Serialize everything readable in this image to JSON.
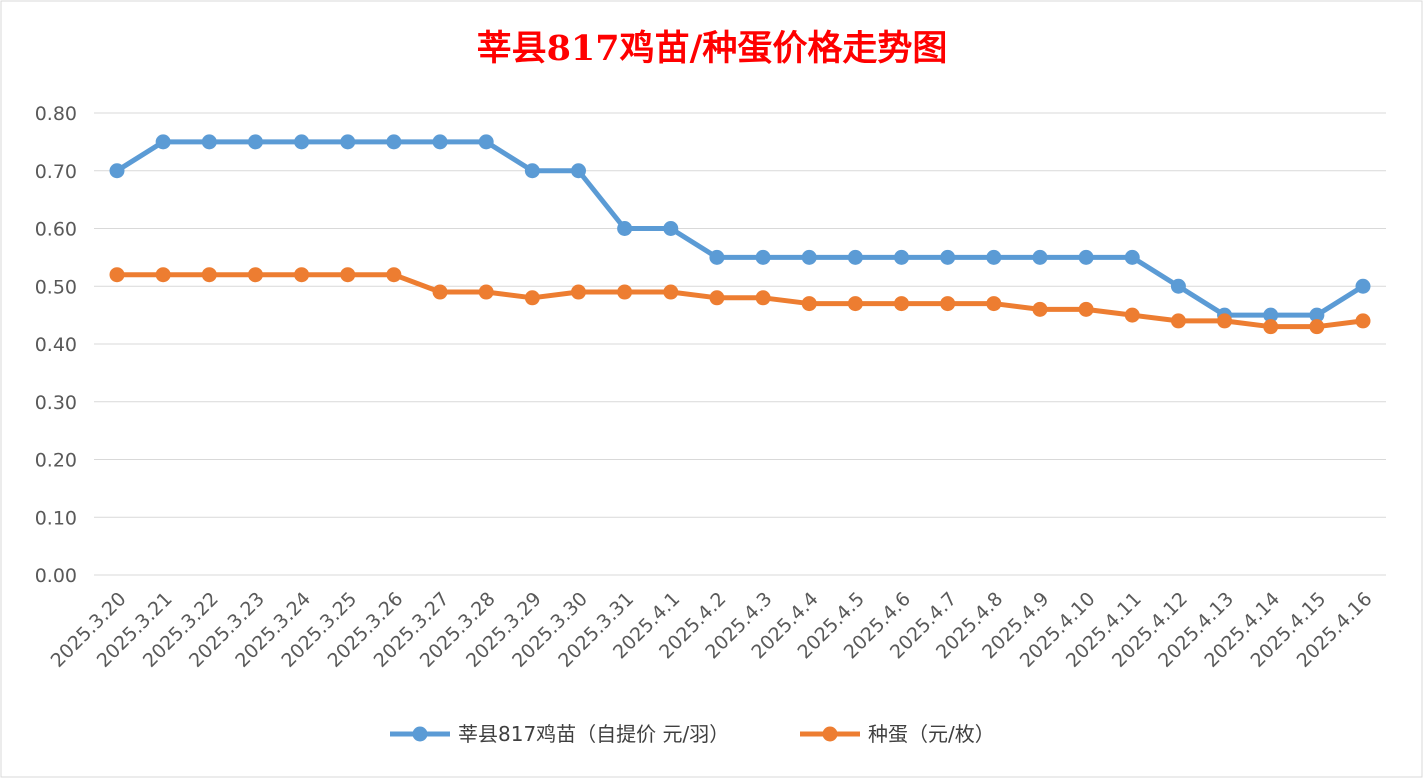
{
  "chart_data": {
    "type": "line",
    "title": "莘县817鸡苗/种蛋价格走势图",
    "xlabel": "",
    "ylabel": "",
    "ylim": [
      0,
      0.8
    ],
    "yticks": [
      "0.00",
      "0.10",
      "0.20",
      "0.30",
      "0.40",
      "0.50",
      "0.60",
      "0.70",
      "0.80"
    ],
    "grid": true,
    "legend_position": "bottom",
    "categories": [
      "2025.3.20",
      "2025.3.21",
      "2025.3.22",
      "2025.3.23",
      "2025.3.24",
      "2025.3.25",
      "2025.3.26",
      "2025.3.27",
      "2025.3.28",
      "2025.3.29",
      "2025.3.30",
      "2025.3.31",
      "2025.4.1",
      "2025.4.2",
      "2025.4.3",
      "2025.4.4",
      "2025.4.5",
      "2025.4.6",
      "2025.4.7",
      "2025.4.8",
      "2025.4.9",
      "2025.4.10",
      "2025.4.11",
      "2025.4.12",
      "2025.4.13",
      "2025.4.14",
      "2025.4.15",
      "2025.4.16"
    ],
    "series": [
      {
        "name": "莘县817鸡苗（自提价 元/羽）",
        "color": "#5b9bd5",
        "values": [
          0.7,
          0.75,
          0.75,
          0.75,
          0.75,
          0.75,
          0.75,
          0.75,
          0.75,
          0.7,
          0.7,
          0.6,
          0.6,
          0.55,
          0.55,
          0.55,
          0.55,
          0.55,
          0.55,
          0.55,
          0.55,
          0.55,
          0.55,
          0.5,
          0.45,
          0.45,
          0.45,
          0.5
        ]
      },
      {
        "name": "种蛋（元/枚）",
        "color": "#ed7d31",
        "values": [
          0.52,
          0.52,
          0.52,
          0.52,
          0.52,
          0.52,
          0.52,
          0.49,
          0.49,
          0.48,
          0.49,
          0.49,
          0.49,
          0.48,
          0.48,
          0.47,
          0.47,
          0.47,
          0.47,
          0.47,
          0.46,
          0.46,
          0.45,
          0.44,
          0.44,
          0.43,
          0.43,
          0.44
        ]
      }
    ]
  }
}
